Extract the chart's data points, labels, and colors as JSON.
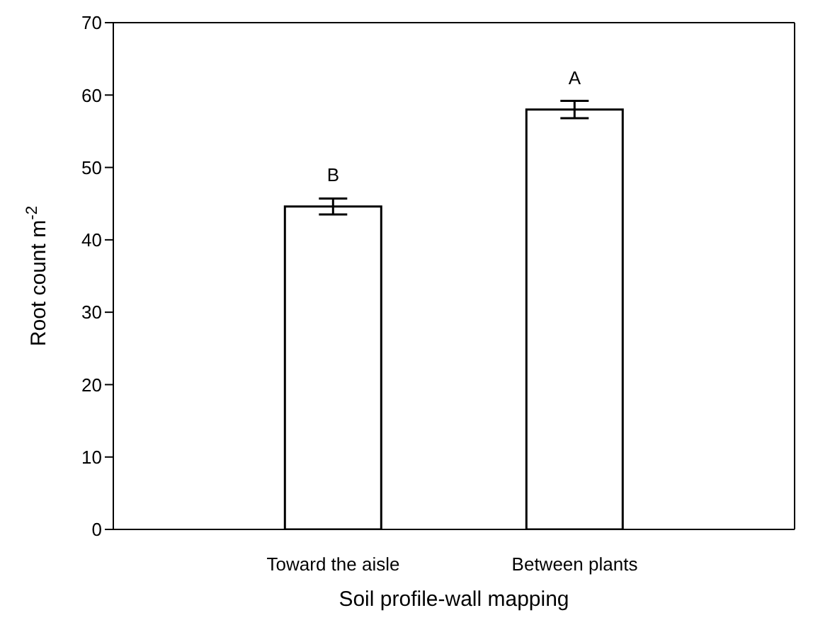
{
  "chart_data": {
    "type": "bar",
    "xlabel": "Soil profile-wall mapping",
    "ylabel": "Root count m$^{-2}$",
    "categories": [
      "Toward the aisle",
      "Between plants"
    ],
    "values": [
      44.6,
      58.0
    ],
    "errors": [
      1.1,
      1.2
    ],
    "color": "#ffffff",
    "ylim": [
      0,
      70
    ],
    "yticks": [
      0,
      10,
      20,
      30,
      40,
      50,
      60,
      70
    ],
    "annotations": [
      "B",
      "A"
    ]
  }
}
